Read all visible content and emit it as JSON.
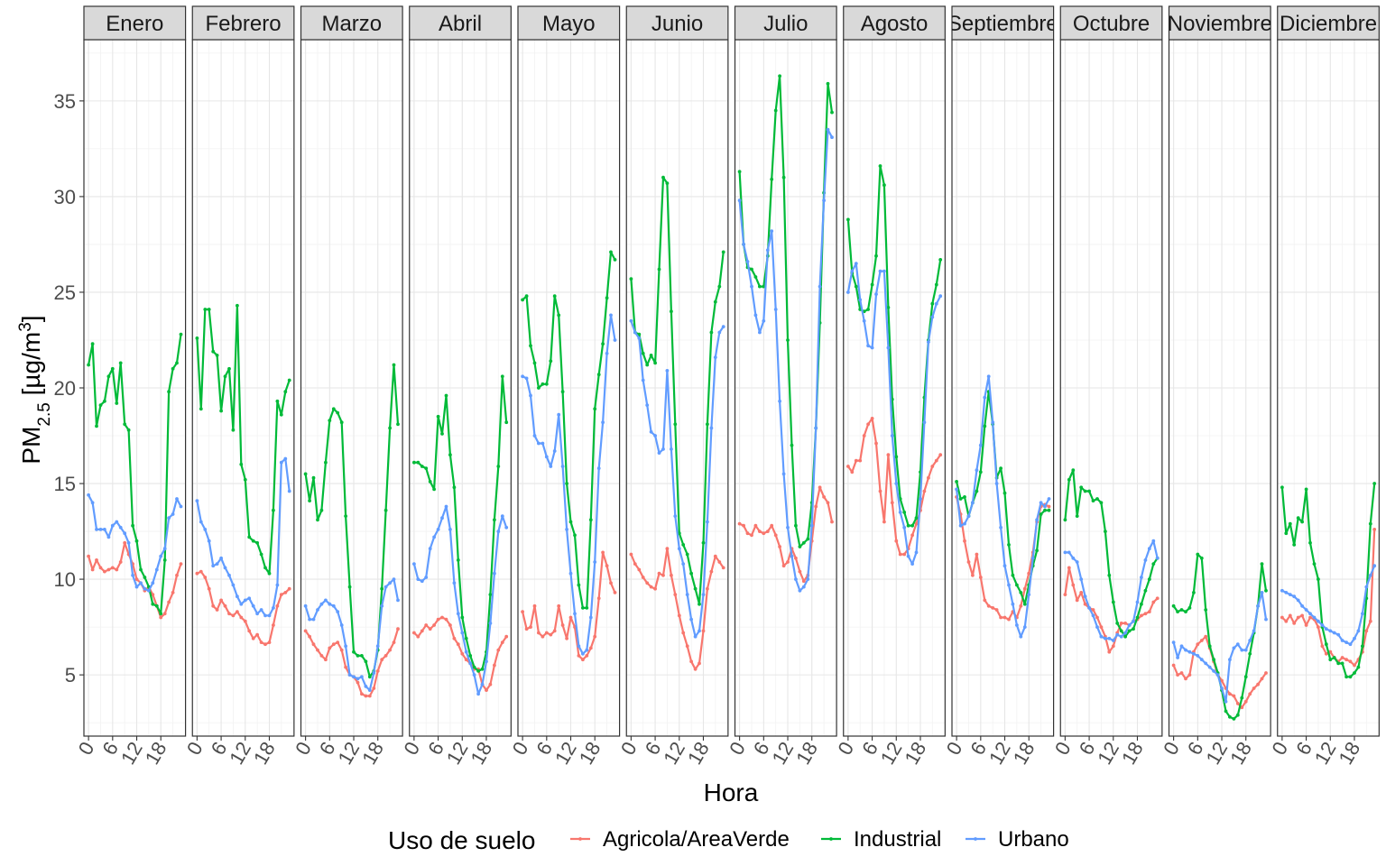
{
  "chart_data": {
    "type": "line",
    "facets": [
      "Enero",
      "Febrero",
      "Marzo",
      "Abril",
      "Mayo",
      "Junio",
      "Julio",
      "Agosto",
      "Septiembre",
      "Octubre",
      "Noviembre",
      "Diciembre"
    ],
    "x": [
      0,
      1,
      2,
      3,
      4,
      5,
      6,
      7,
      8,
      9,
      10,
      11,
      12,
      13,
      14,
      15,
      16,
      17,
      18,
      19,
      20,
      21,
      22,
      23
    ],
    "x_ticks": [
      "0",
      "6",
      "12",
      "18"
    ],
    "y_ticks": [
      "5",
      "10",
      "15",
      "20",
      "25",
      "30",
      "35"
    ],
    "ylim": [
      1.8,
      38.2
    ],
    "xlabel": "Hora",
    "ylabel": {
      "base": "PM",
      "sub": "2.5",
      "unit": " [µg/m",
      "sup": "3",
      "close": "]"
    },
    "grid": true,
    "legend": {
      "title": "Uso de suelo",
      "position": "bottom"
    },
    "series": [
      {
        "name": "Agricola/AreaVerde",
        "color": "#F8766D",
        "values": [
          [
            11.2,
            10.5,
            11.0,
            10.6,
            10.4,
            10.5,
            10.6,
            10.5,
            10.9,
            11.9,
            11.3,
            10.8,
            10.0,
            9.8,
            9.4,
            9.6,
            9.2,
            8.6,
            8.0,
            8.2,
            8.8,
            9.3,
            10.2,
            10.8
          ],
          [
            10.3,
            10.4,
            10.1,
            9.5,
            8.6,
            8.4,
            8.9,
            8.6,
            8.2,
            8.1,
            8.3,
            8.0,
            7.8,
            7.3,
            6.9,
            7.1,
            6.7,
            6.6,
            6.7,
            7.6,
            8.6,
            9.2,
            9.3,
            9.5
          ],
          [
            7.3,
            7.0,
            6.6,
            6.3,
            6.0,
            5.8,
            6.4,
            6.6,
            6.7,
            6.3,
            5.4,
            5.0,
            4.9,
            4.6,
            4.0,
            3.9,
            3.9,
            4.3,
            5.2,
            5.8,
            6.0,
            6.3,
            6.7,
            7.4
          ],
          [
            7.2,
            7.0,
            7.3,
            7.6,
            7.4,
            7.6,
            7.9,
            8.0,
            7.9,
            7.6,
            6.9,
            6.6,
            6.1,
            5.8,
            5.6,
            5.3,
            5.3,
            4.5,
            4.2,
            4.5,
            5.5,
            6.3,
            6.7,
            7.0
          ],
          [
            8.3,
            7.4,
            7.5,
            8.6,
            7.2,
            7.0,
            7.2,
            7.1,
            7.3,
            8.6,
            7.6,
            6.9,
            8.0,
            7.5,
            6.0,
            5.8,
            6.0,
            6.4,
            7.0,
            9.0,
            11.4,
            10.7,
            9.8,
            9.3
          ],
          [
            11.3,
            10.8,
            10.5,
            10.1,
            9.8,
            9.6,
            9.5,
            10.3,
            10.2,
            11.6,
            10.2,
            9.2,
            8.1,
            7.2,
            6.5,
            5.7,
            5.3,
            5.6,
            7.3,
            9.5,
            10.4,
            11.2,
            10.9,
            10.6
          ],
          [
            12.9,
            12.8,
            12.4,
            12.3,
            12.8,
            12.5,
            12.4,
            12.5,
            12.8,
            12.3,
            11.7,
            10.7,
            10.9,
            11.6,
            11.1,
            10.4,
            9.9,
            10.2,
            12.0,
            13.8,
            14.8,
            14.3,
            14.0,
            13.0
          ],
          [
            15.9,
            15.6,
            16.2,
            16.2,
            17.5,
            18.1,
            18.4,
            17.1,
            14.6,
            13.0,
            16.5,
            14.0,
            12.0,
            11.3,
            11.3,
            11.6,
            12.3,
            12.9,
            13.6,
            14.6,
            15.3,
            15.9,
            16.2,
            16.5
          ],
          [
            14.3,
            13.4,
            12.0,
            10.9,
            10.2,
            11.3,
            10.1,
            8.9,
            8.6,
            8.5,
            8.4,
            8.0,
            8.0,
            7.9,
            8.3,
            8.0,
            8.6,
            9.5,
            10.3,
            11.4,
            13.0,
            13.8,
            13.9,
            13.8
          ],
          [
            9.2,
            10.6,
            9.7,
            8.9,
            9.3,
            8.7,
            8.5,
            8.4,
            8.0,
            7.5,
            7.0,
            6.2,
            6.5,
            7.2,
            7.7,
            7.7,
            7.6,
            7.8,
            7.9,
            8.1,
            8.2,
            8.3,
            8.8,
            9.0
          ],
          [
            5.5,
            5.0,
            5.1,
            4.8,
            5.0,
            6.2,
            6.6,
            6.8,
            7.0,
            6.4,
            5.7,
            5.0,
            4.7,
            4.3,
            4.0,
            3.9,
            3.5,
            3.3,
            3.6,
            4.0,
            4.3,
            4.5,
            4.8,
            5.1
          ],
          [
            8.0,
            7.8,
            8.1,
            7.7,
            8.0,
            8.1,
            7.6,
            8.0,
            7.9,
            7.5,
            6.5,
            6.1,
            6.2,
            5.9,
            5.7,
            5.9,
            5.8,
            5.7,
            5.5,
            5.8,
            6.2,
            7.3,
            7.8,
            12.6
          ]
        ]
      },
      {
        "name": "Industrial",
        "color": "#00BA38",
        "values": [
          [
            21.2,
            22.3,
            18.0,
            19.1,
            19.3,
            20.6,
            21.0,
            19.2,
            21.3,
            18.1,
            17.8,
            12.8,
            12.0,
            10.5,
            10.1,
            9.6,
            8.7,
            8.6,
            8.2,
            11.0,
            19.8,
            21.0,
            21.3,
            22.8
          ],
          [
            22.6,
            18.9,
            24.1,
            24.1,
            21.9,
            21.7,
            18.8,
            20.6,
            21.0,
            17.8,
            24.3,
            16.0,
            15.2,
            12.2,
            12.0,
            11.9,
            11.3,
            10.6,
            10.3,
            13.6,
            19.3,
            18.6,
            19.8,
            20.4
          ],
          [
            15.5,
            14.1,
            15.3,
            13.1,
            13.6,
            16.1,
            18.3,
            18.9,
            18.7,
            18.2,
            13.3,
            9.6,
            6.2,
            6.0,
            6.0,
            5.7,
            4.9,
            5.2,
            6.3,
            9.5,
            13.6,
            17.9,
            21.2,
            18.1
          ],
          [
            16.1,
            16.1,
            15.9,
            15.8,
            15.1,
            14.7,
            18.5,
            17.6,
            19.6,
            16.5,
            14.8,
            11.0,
            8.0,
            6.9,
            6.0,
            5.4,
            5.2,
            5.3,
            6.2,
            9.2,
            13.1,
            15.9,
            20.6,
            18.2
          ],
          [
            24.6,
            24.8,
            22.2,
            21.3,
            20.0,
            20.2,
            20.2,
            21.4,
            24.8,
            23.8,
            19.8,
            15.0,
            13.0,
            12.3,
            9.7,
            8.5,
            8.5,
            13.1,
            18.9,
            20.7,
            22.3,
            24.7,
            27.1,
            26.7
          ],
          [
            25.7,
            22.9,
            22.8,
            21.8,
            21.2,
            21.7,
            21.3,
            26.2,
            31.0,
            30.7,
            24.0,
            18.1,
            12.4,
            11.8,
            11.3,
            10.3,
            9.5,
            8.7,
            11.9,
            18.1,
            22.9,
            24.5,
            25.3,
            27.1
          ],
          [
            31.3,
            27.5,
            26.3,
            26.2,
            25.8,
            25.3,
            25.3,
            26.9,
            30.9,
            34.5,
            36.3,
            31.0,
            22.5,
            17.0,
            12.8,
            11.7,
            11.9,
            12.1,
            14.0,
            17.9,
            23.4,
            30.2,
            35.9,
            34.4
          ],
          [
            28.8,
            26.0,
            25.3,
            24.1,
            24.0,
            24.1,
            25.4,
            26.9,
            31.6,
            30.6,
            24.2,
            19.4,
            16.4,
            14.2,
            13.5,
            12.8,
            12.8,
            13.2,
            15.6,
            19.5,
            22.5,
            24.4,
            25.4,
            26.7
          ],
          [
            15.1,
            14.2,
            14.3,
            13.3,
            14.0,
            14.6,
            15.6,
            18.0,
            19.8,
            18.1,
            15.3,
            15.8,
            14.5,
            11.8,
            10.2,
            9.7,
            9.3,
            8.7,
            9.7,
            10.7,
            11.5,
            13.4,
            13.6,
            13.6
          ],
          [
            13.1,
            15.2,
            15.7,
            13.3,
            14.8,
            14.6,
            14.6,
            14.1,
            14.2,
            14.0,
            12.5,
            10.2,
            8.8,
            7.7,
            7.3,
            7.0,
            7.3,
            7.4,
            8.0,
            8.7,
            9.4,
            10.0,
            10.8,
            11.1
          ],
          [
            8.6,
            8.3,
            8.4,
            8.3,
            8.5,
            9.3,
            11.3,
            11.1,
            8.4,
            6.5,
            5.8,
            5.1,
            4.2,
            3.1,
            2.8,
            2.7,
            2.9,
            3.8,
            4.9,
            6.1,
            7.2,
            8.6,
            10.8,
            9.4
          ],
          [
            14.8,
            12.4,
            12.9,
            11.8,
            13.2,
            13.0,
            14.7,
            11.9,
            10.8,
            10.0,
            7.5,
            6.6,
            5.8,
            5.9,
            5.6,
            5.6,
            4.9,
            4.9,
            5.1,
            5.4,
            6.5,
            9.0,
            12.9,
            15.0
          ]
        ]
      },
      {
        "name": "Urbano",
        "color": "#619CFF",
        "values": [
          [
            14.4,
            14.0,
            12.6,
            12.6,
            12.6,
            12.2,
            12.8,
            13.0,
            12.7,
            12.4,
            11.9,
            10.2,
            9.6,
            9.8,
            9.5,
            9.4,
            9.8,
            10.5,
            11.2,
            11.6,
            13.2,
            13.4,
            14.2,
            13.8
          ],
          [
            14.1,
            13.0,
            12.6,
            12.0,
            10.7,
            10.8,
            11.1,
            10.6,
            10.2,
            9.7,
            9.1,
            8.7,
            8.9,
            9.0,
            8.6,
            8.2,
            8.4,
            8.1,
            8.1,
            8.5,
            9.7,
            16.1,
            16.3,
            14.6
          ],
          [
            8.6,
            7.9,
            7.9,
            8.4,
            8.7,
            8.9,
            8.7,
            8.6,
            8.3,
            7.6,
            6.5,
            5.0,
            4.9,
            4.8,
            4.9,
            4.4,
            4.2,
            5.1,
            6.5,
            8.6,
            9.6,
            9.8,
            10.0,
            8.9
          ],
          [
            10.8,
            10.0,
            9.9,
            10.1,
            11.6,
            12.2,
            12.6,
            13.2,
            13.8,
            12.6,
            9.8,
            8.2,
            7.2,
            6.2,
            5.6,
            5.0,
            4.0,
            4.5,
            5.7,
            7.7,
            10.3,
            12.5,
            13.3,
            12.7
          ],
          [
            20.6,
            20.5,
            19.6,
            17.5,
            17.1,
            17.1,
            16.4,
            15.9,
            16.7,
            18.6,
            15.9,
            12.6,
            10.3,
            8.2,
            6.5,
            6.1,
            6.3,
            8.0,
            10.9,
            15.8,
            18.2,
            21.8,
            23.8,
            22.5
          ],
          [
            23.5,
            22.9,
            22.6,
            20.4,
            19.1,
            17.7,
            17.5,
            16.6,
            16.8,
            20.9,
            16.8,
            13.3,
            11.6,
            10.8,
            9.2,
            7.9,
            7.0,
            7.3,
            9.2,
            13.0,
            17.9,
            21.6,
            22.9,
            23.2
          ],
          [
            29.8,
            27.5,
            26.6,
            25.3,
            23.8,
            22.9,
            23.5,
            27.2,
            28.2,
            24.1,
            19.3,
            15.5,
            12.7,
            11.2,
            10.0,
            9.4,
            9.6,
            10.0,
            12.8,
            17.9,
            25.3,
            29.8,
            33.5,
            33.1
          ],
          [
            25.0,
            26.1,
            26.5,
            24.6,
            23.5,
            22.2,
            22.1,
            24.9,
            26.1,
            26.1,
            22.1,
            17.5,
            15.0,
            13.5,
            12.7,
            11.2,
            10.8,
            11.4,
            14.2,
            18.2,
            22.4,
            23.7,
            24.4,
            24.8
          ],
          [
            14.7,
            12.8,
            12.9,
            13.3,
            14.0,
            15.7,
            17.0,
            19.5,
            20.6,
            18.2,
            15.0,
            12.7,
            10.7,
            9.7,
            8.7,
            7.6,
            7.0,
            7.5,
            9.2,
            11.1,
            13.1,
            14.0,
            13.8,
            14.2
          ],
          [
            11.4,
            11.4,
            11.1,
            10.9,
            10.0,
            9.1,
            8.5,
            8.1,
            7.5,
            7.0,
            6.9,
            6.9,
            6.8,
            7.1,
            7.0,
            7.2,
            7.6,
            7.8,
            8.8,
            10.1,
            11.0,
            11.6,
            12.0,
            11.1
          ],
          [
            6.7,
            5.9,
            6.5,
            6.3,
            6.2,
            6.1,
            6.0,
            5.8,
            5.6,
            5.4,
            5.2,
            5.0,
            4.3,
            3.6,
            5.8,
            6.4,
            6.6,
            6.3,
            6.3,
            6.8,
            7.3,
            8.6,
            9.3,
            7.9
          ],
          [
            9.4,
            9.3,
            9.2,
            9.1,
            8.9,
            8.6,
            8.4,
            8.2,
            8.0,
            7.8,
            7.6,
            7.4,
            7.3,
            7.2,
            7.1,
            6.8,
            6.7,
            6.6,
            6.9,
            7.3,
            8.2,
            9.6,
            10.2,
            10.7
          ]
        ]
      }
    ]
  }
}
